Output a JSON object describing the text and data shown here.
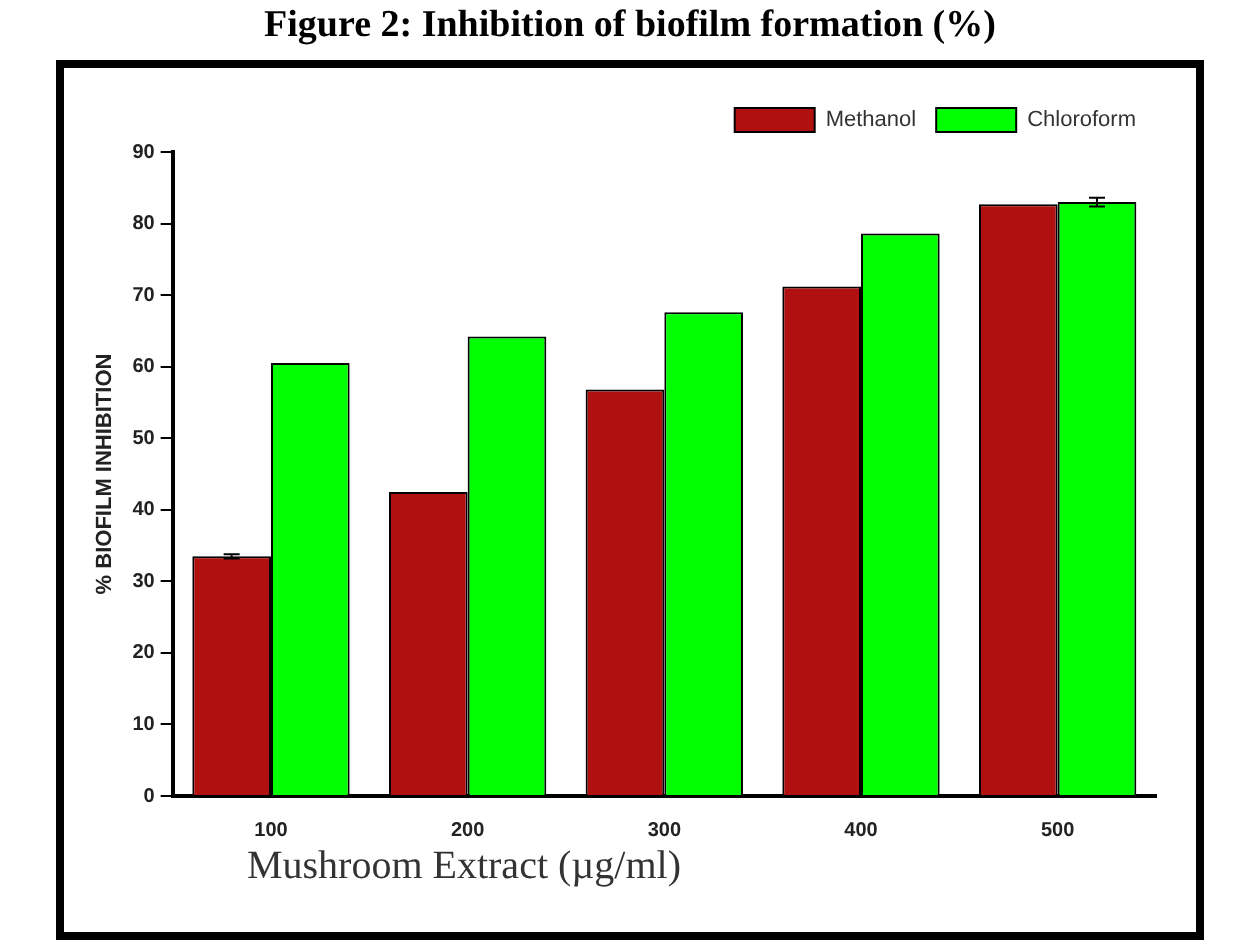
{
  "chart_data": {
    "type": "bar",
    "title": "Figure 2: Inhibition of biofilm formation (%)",
    "xlabel": "Mushroom Extract (µg/ml)",
    "ylabel": "% BIOFILM INHIBITION",
    "categories": [
      "100",
      "200",
      "300",
      "400",
      "500"
    ],
    "series": [
      {
        "name": "Methanol",
        "color": "#b01010",
        "values": [
          33.5,
          42.5,
          56.8,
          71.2,
          82.7
        ],
        "errors": [
          0.3,
          null,
          null,
          null,
          null
        ]
      },
      {
        "name": "Chloroform",
        "color": "#00ff00",
        "values": [
          60.5,
          64.2,
          67.6,
          78.6,
          83.0
        ],
        "errors": [
          null,
          null,
          null,
          null,
          0.6
        ]
      }
    ],
    "ylim": [
      0,
      90
    ],
    "yticks": [
      0,
      10,
      20,
      30,
      40,
      50,
      60,
      70,
      80,
      90
    ],
    "grid": false,
    "legend": "top right"
  }
}
